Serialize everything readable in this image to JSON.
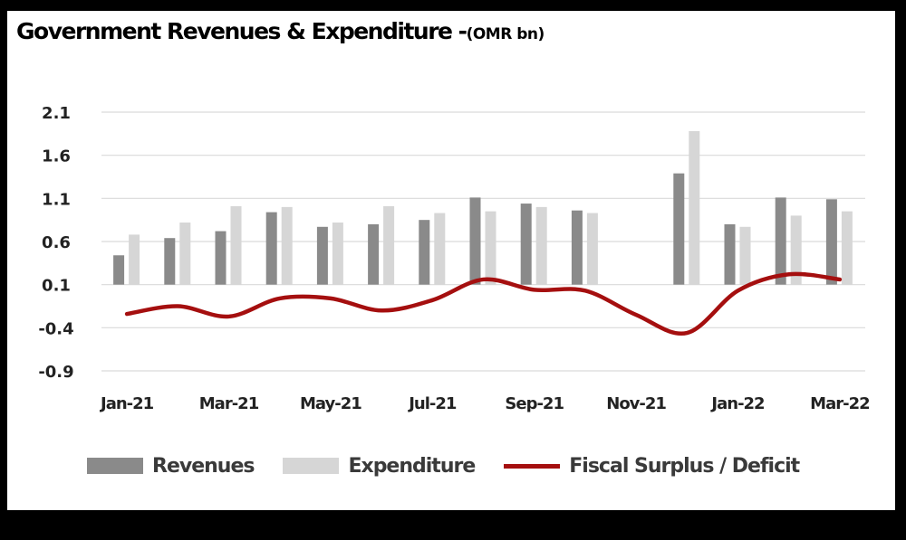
{
  "title": "Government Revenues & Expenditure -",
  "title_unit": "(OMR bn)",
  "colors": {
    "revenues": "#8a8a8a",
    "expenditure": "#d6d6d6",
    "balance": "#a50f0f",
    "grid": "#d9d9d9"
  },
  "chart_data": {
    "type": "bar",
    "categories": [
      "Jan-21",
      "Feb-21",
      "Mar-21",
      "Apr-21",
      "May-21",
      "Jun-21",
      "Jul-21",
      "Aug-21",
      "Sep-21",
      "Oct-21",
      "Nov-21",
      "Dec-21",
      "Jan-22",
      "Feb-22",
      "Mar-22"
    ],
    "x_tick_labels": [
      "Jan-21",
      "Mar-21",
      "May-21",
      "Jul-21",
      "Sep-21",
      "Nov-21",
      "Jan-22",
      "Mar-22"
    ],
    "series": [
      {
        "name": "Revenues",
        "type": "bar",
        "values": [
          0.44,
          0.64,
          0.72,
          0.94,
          0.77,
          0.8,
          0.85,
          1.11,
          1.04,
          0.96,
          null,
          1.39,
          0.8,
          1.11,
          1.09
        ]
      },
      {
        "name": "Expenditure",
        "type": "bar",
        "values": [
          0.68,
          0.82,
          1.01,
          1.0,
          0.82,
          1.01,
          0.93,
          0.95,
          1.0,
          0.93,
          null,
          1.88,
          0.77,
          0.9,
          0.95
        ]
      },
      {
        "name": "Fiscal Surplus / Deficit",
        "type": "line",
        "values": [
          -0.24,
          -0.15,
          -0.27,
          -0.06,
          -0.06,
          -0.2,
          -0.08,
          0.16,
          0.04,
          0.03,
          -0.25,
          -0.46,
          0.03,
          0.22,
          0.16
        ]
      }
    ],
    "y_ticks": [
      2.1,
      1.6,
      1.1,
      0.6,
      0.1,
      -0.4,
      -0.9
    ],
    "ylim": [
      -0.9,
      2.1
    ],
    "grid": true,
    "legend_position": "bottom"
  },
  "legend": {
    "revenues": "Revenues",
    "expenditure": "Expenditure",
    "balance": "Fiscal Surplus / Deficit"
  }
}
